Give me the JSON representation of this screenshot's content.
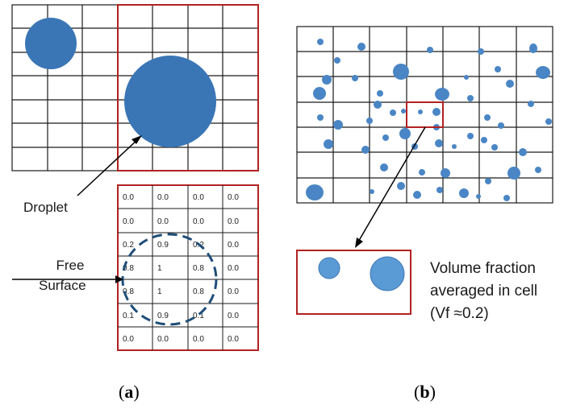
{
  "labels": {
    "droplet": "Droplet",
    "free_surface_line1": "Free",
    "free_surface_line2": "Surface",
    "vf_line1": "Volume fraction",
    "vf_line2": "averaged in cell",
    "vf_line3": "(Vf ≈0.2)"
  },
  "captions": {
    "a_open": "(",
    "a_letter": "a",
    "a_close": ")",
    "b_open": "(",
    "b_letter": "b",
    "b_close": ")"
  },
  "volume_fraction_table": [
    [
      "0.0",
      "0.0",
      "0.0",
      "0.0"
    ],
    [
      "0.0",
      "0.0",
      "0.0",
      "0.0"
    ],
    [
      "0.2",
      "0.9",
      "0.2",
      "0.0"
    ],
    [
      "0.8",
      "1",
      "0.8",
      "0.0"
    ],
    [
      "0.8",
      "1",
      "0.8",
      "0.0"
    ],
    [
      "0.1",
      "0.9",
      "0.1",
      "0.0"
    ],
    [
      "0.0",
      "0.0",
      "0.0",
      "0.0"
    ]
  ],
  "colors": {
    "grid": "#1a1a1a",
    "highlight_red": "#b22222",
    "droplet_fill": "#3a76b5",
    "small_droplet_fill": "#5b9bd5",
    "dashed_circle": "#1f4e79"
  }
}
